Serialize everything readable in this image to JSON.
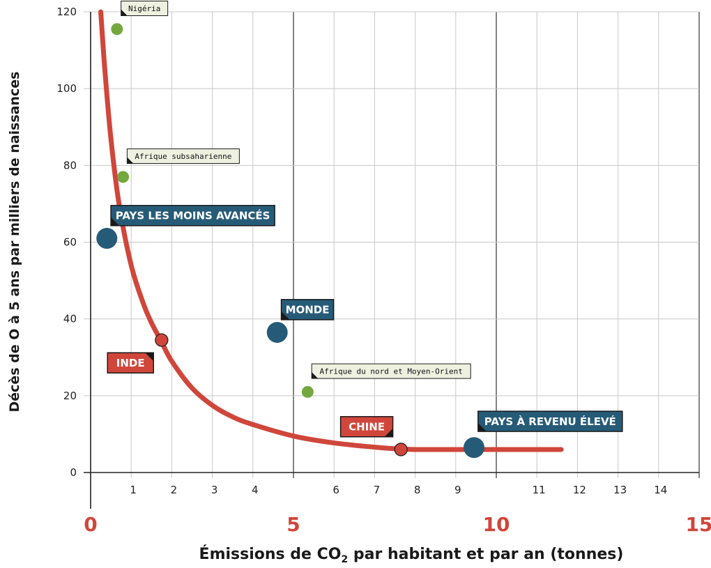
{
  "chart_data": {
    "type": "scatter",
    "title": "",
    "xlabel": "Émissions de CO₂ par habitant et par an (tonnes)",
    "xlabel_parts": {
      "before": "Émissions de CO",
      "sub": "2",
      "after": " par habitant et par an (tonnes)"
    },
    "ylabel": "Décès de O à 5 ans par milliers de naissances",
    "xlim": [
      0,
      15
    ],
    "ylim": [
      0,
      120
    ],
    "x_ticks_minor": [
      "1",
      "2",
      "3",
      "4",
      "6",
      "7",
      "8",
      "9",
      "11",
      "12",
      "13",
      "14"
    ],
    "x_ticks_major": [
      "0",
      "5",
      "10",
      "15"
    ],
    "y_ticks": [
      "0",
      "20",
      "40",
      "60",
      "80",
      "100",
      "120"
    ],
    "grid": true,
    "trend_curve": {
      "x": [
        0.25,
        0.35,
        0.5,
        0.7,
        1.0,
        1.3,
        1.5,
        1.75,
        2.0,
        2.5,
        3.0,
        3.5,
        4.0,
        5.0,
        6.0,
        7.0,
        7.5,
        8.0,
        9.0,
        10.0,
        11.0,
        11.6
      ],
      "y": [
        120,
        105,
        87,
        70,
        54,
        44,
        39,
        34,
        29,
        22,
        17.5,
        14.5,
        12.5,
        9.5,
        7.7,
        6.6,
        6.2,
        6,
        6,
        6,
        6,
        6
      ]
    },
    "points": [
      {
        "name": "Nigéria",
        "group": "pays",
        "x": 0.65,
        "y": 115.5,
        "label_offset": [
          0.1,
          3.5
        ]
      },
      {
        "name": "Afrique subsaharienne",
        "group": "pays",
        "x": 0.8,
        "y": 77,
        "label_offset": [
          0.1,
          3.5
        ]
      },
      {
        "name": "PAYS LES MOINS AVANCÉS",
        "group": "agregat",
        "x": 0.4,
        "y": 61,
        "label_offset": [
          0.1,
          3.3
        ]
      },
      {
        "name": "MONDE",
        "group": "agregat",
        "x": 4.6,
        "y": 36.5,
        "label_offset": [
          0.1,
          3.3
        ]
      },
      {
        "name": "INDE",
        "group": "pays_cle",
        "x": 1.75,
        "y": 34.5,
        "label_offset": [
          -0.2,
          -3.3
        ]
      },
      {
        "name": "Afrique du nord et Moyen-Orient",
        "group": "pays",
        "x": 5.35,
        "y": 21,
        "label_offset": [
          0.1,
          3.5
        ]
      },
      {
        "name": "CHINE",
        "group": "pays_cle",
        "x": 7.65,
        "y": 6,
        "label_offset": [
          -0.2,
          3.3
        ]
      },
      {
        "name": "PAYS À REVENU ÉLEVÉ",
        "group": "agregat",
        "x": 9.45,
        "y": 6.5,
        "label_offset": [
          0.1,
          4.2
        ]
      }
    ],
    "colors": {
      "curve": "#d0463b",
      "agregat": "#265b78",
      "pays_cle": "#d0463b",
      "pays": "#74a83e",
      "pays_label_bg": "#eef1e0"
    }
  }
}
